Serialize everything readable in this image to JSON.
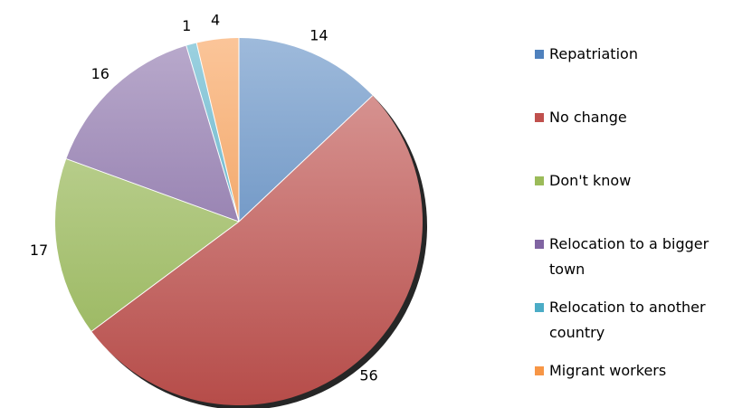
{
  "chart_data": {
    "type": "pie",
    "categories": [
      "Repatriation",
      "No change",
      "Don't know",
      "Relocation to a bigger town",
      "Relocation to another country",
      "Migrant workers"
    ],
    "values": [
      14,
      56,
      17,
      16,
      1,
      4
    ],
    "colors": [
      "#4f81bd",
      "#c0504d",
      "#9bbb59",
      "#8064a2",
      "#4bacc6",
      "#f79646"
    ],
    "legend": "right"
  }
}
